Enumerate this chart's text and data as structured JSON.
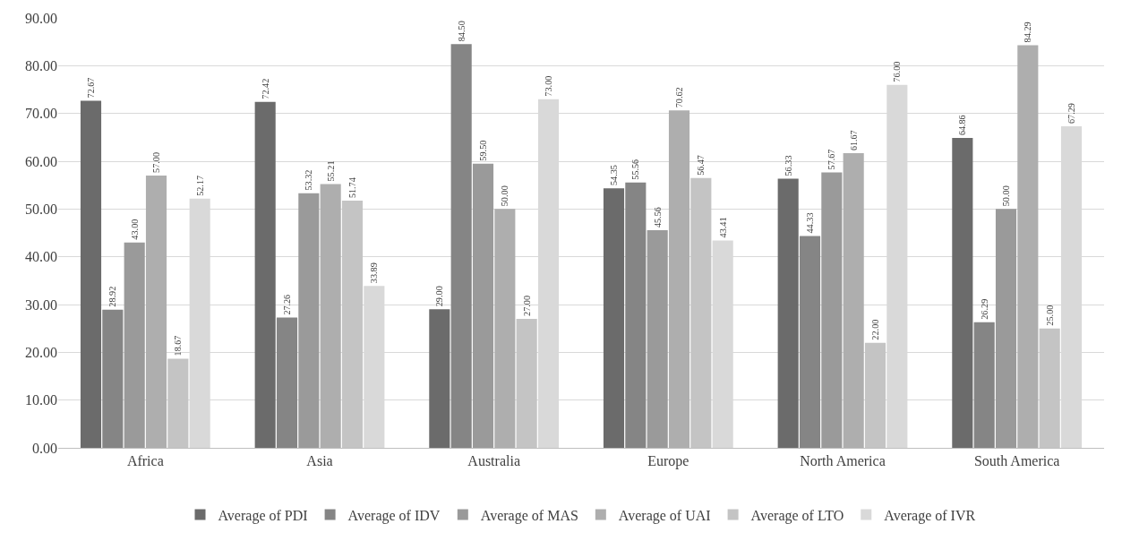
{
  "chart_data": {
    "type": "bar",
    "categories": [
      "Africa",
      "Asia",
      "Australia",
      "Europe",
      "North America",
      "South America"
    ],
    "series": [
      {
        "name": "Average of PDI",
        "color": "#6b6b6b",
        "values": [
          72.67,
          72.42,
          29.0,
          54.35,
          56.33,
          64.86
        ],
        "value_labels": [
          "72.67",
          "72.42",
          "29.00",
          "54.35",
          "56.33",
          "64.86"
        ]
      },
      {
        "name": "Average of IDV",
        "color": "#858585",
        "values": [
          28.92,
          27.26,
          84.5,
          55.56,
          44.33,
          26.29
        ],
        "value_labels": [
          "28.92",
          "27.26",
          "84.50",
          "55.56",
          "44.33",
          "26.29"
        ]
      },
      {
        "name": "Average of MAS",
        "color": "#9a9a9a",
        "values": [
          43.0,
          53.32,
          59.5,
          45.56,
          57.67,
          50.0
        ],
        "value_labels": [
          "43.00",
          "53.32",
          "59.50",
          "45.56",
          "57.67",
          "50.00"
        ]
      },
      {
        "name": "Average of UAI",
        "color": "#aeaeae",
        "values": [
          57.0,
          55.21,
          50.0,
          70.62,
          61.67,
          84.29
        ],
        "value_labels": [
          "57.00",
          "55.21",
          "50.00",
          "70.62",
          "61.67",
          "84.29"
        ]
      },
      {
        "name": "Average of LTO",
        "color": "#c4c4c4",
        "values": [
          18.67,
          51.74,
          27.0,
          56.47,
          22.0,
          25.0
        ],
        "value_labels": [
          "18.67",
          "51.74",
          "27.00",
          "56.47",
          "22.00",
          "25.00"
        ]
      },
      {
        "name": "Average of IVR",
        "color": "#d9d9d9",
        "values": [
          52.17,
          33.89,
          73.0,
          43.41,
          76.0,
          67.29
        ],
        "value_labels": [
          "52.17",
          "33.89",
          "73.00",
          "43.41",
          "76.00",
          "67.29"
        ]
      }
    ],
    "ylim": [
      0,
      90
    ],
    "yticks": [
      {
        "value": 0,
        "label": "0.00"
      },
      {
        "value": 10,
        "label": "10.00"
      },
      {
        "value": 20,
        "label": "20.00"
      },
      {
        "value": 30,
        "label": "30.00"
      },
      {
        "value": 40,
        "label": "40.00"
      },
      {
        "value": 50,
        "label": "50.00"
      },
      {
        "value": 60,
        "label": "60.00"
      },
      {
        "value": 70,
        "label": "70.00"
      },
      {
        "value": 80,
        "label": "80.00"
      },
      {
        "value": 90,
        "label": "90.00"
      }
    ],
    "grid": "y",
    "legend": "bottom"
  }
}
